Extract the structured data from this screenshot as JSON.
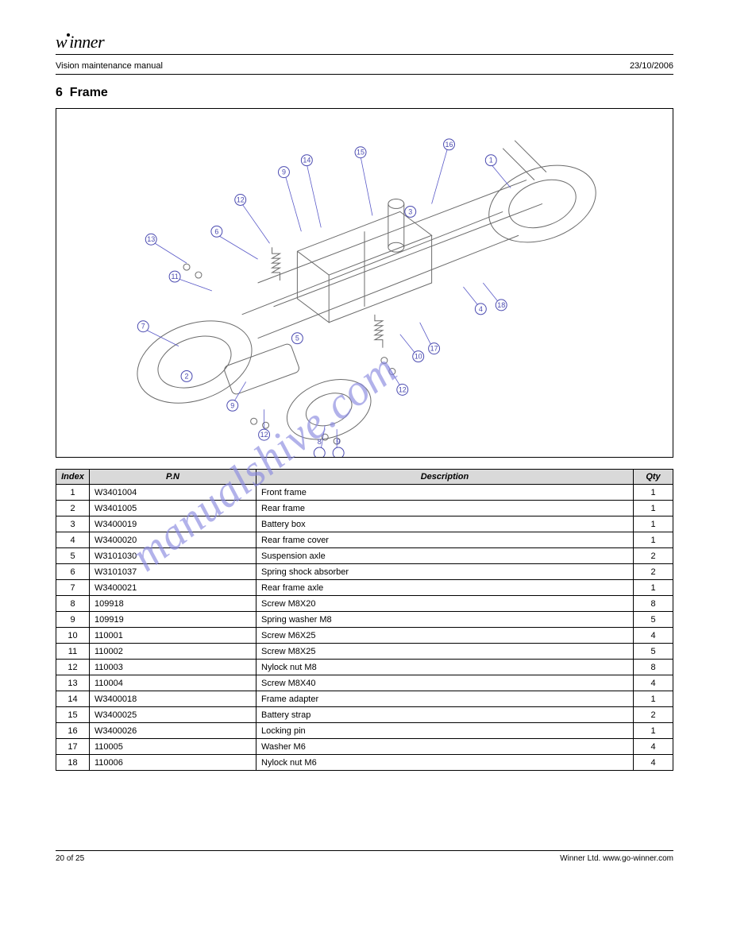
{
  "header": {
    "logo_text": "winner",
    "doc_title": "Vision maintenance manual",
    "date": "23/10/2006"
  },
  "chapter": {
    "number": "6",
    "title": "Frame"
  },
  "table": {
    "columns": [
      "Index",
      "P.N",
      "Description",
      "Qty"
    ],
    "rows": [
      [
        "1",
        "W3401004",
        "Front frame",
        "1"
      ],
      [
        "2",
        "W3401005",
        "Rear frame",
        "1"
      ],
      [
        "3",
        "W3400019",
        "Battery box",
        "1"
      ],
      [
        "4",
        "W3400020",
        "Rear frame cover",
        "1"
      ],
      [
        "5",
        "W3101030",
        "Suspension axle",
        "2"
      ],
      [
        "6",
        "W3101037",
        "Spring shock absorber",
        "2"
      ],
      [
        "7",
        "W3400021",
        "Rear frame axle",
        "1"
      ],
      [
        "8",
        "109918",
        "Screw M8X20",
        "8"
      ],
      [
        "9",
        "109919",
        "Spring washer M8",
        "5"
      ],
      [
        "10",
        "110001",
        "Screw M6X25",
        "4"
      ],
      [
        "11",
        "110002",
        "Screw M8X25",
        "5"
      ],
      [
        "12",
        "110003",
        "Nylock nut M8",
        "8"
      ],
      [
        "13",
        "110004",
        "Screw M8X40",
        "4"
      ],
      [
        "14",
        "W3400018",
        "Frame adapter",
        "1"
      ],
      [
        "15",
        "W3400025",
        "Battery strap",
        "2"
      ],
      [
        "16",
        "W3400026",
        "Locking pin",
        "1"
      ],
      [
        "17",
        "110005",
        "Washer M6",
        "4"
      ],
      [
        "18",
        "110006",
        "Nylock nut M6",
        "4"
      ]
    ]
  },
  "footer": {
    "page": "20 of 25",
    "company": "Winner Ltd. www.go-winner.com"
  },
  "watermark": "manualshive.com",
  "diagram": {
    "callouts": [
      "1",
      "2",
      "3",
      "4",
      "5",
      "6",
      "7",
      "8",
      "9",
      "10",
      "11",
      "12",
      "13",
      "14",
      "15",
      "16",
      "17",
      "18"
    ]
  }
}
